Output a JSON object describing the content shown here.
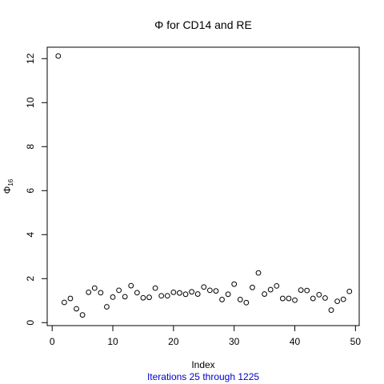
{
  "chart_data": {
    "type": "scatter",
    "title": "Φ  for  CD14  and  RE",
    "xlabel": "Index",
    "ylabel": "Φ",
    "ylabel_subscript": "16",
    "subtitle": "Iterations 25 through 1225",
    "subtitle_color": "#0000cc",
    "marker": "open-circle",
    "grid": false,
    "xlim": [
      0,
      50
    ],
    "ylim": [
      0,
      12.5
    ],
    "xticks": [
      0,
      10,
      20,
      30,
      40,
      50
    ],
    "yticks": [
      0,
      2,
      4,
      6,
      8,
      10,
      12
    ],
    "x": [
      1,
      2,
      3,
      4,
      5,
      6,
      7,
      8,
      9,
      10,
      11,
      12,
      13,
      14,
      15,
      16,
      17,
      18,
      19,
      20,
      21,
      22,
      23,
      24,
      25,
      26,
      27,
      28,
      29,
      30,
      31,
      32,
      33,
      34,
      35,
      36,
      37,
      38,
      39,
      40,
      41,
      42,
      43,
      44,
      45,
      46,
      47,
      48,
      49
    ],
    "y": [
      12.12,
      0.92,
      1.1,
      0.63,
      0.35,
      1.38,
      1.57,
      1.36,
      0.72,
      1.16,
      1.47,
      1.18,
      1.68,
      1.36,
      1.13,
      1.15,
      1.57,
      1.22,
      1.22,
      1.38,
      1.35,
      1.29,
      1.4,
      1.3,
      1.62,
      1.47,
      1.44,
      1.05,
      1.29,
      1.75,
      1.05,
      0.91,
      1.6,
      2.26,
      1.3,
      1.5,
      1.67,
      1.1,
      1.1,
      1.02,
      1.48,
      1.46,
      1.1,
      1.27,
      1.12,
      0.57,
      0.97,
      1.06,
      1.42
    ]
  }
}
